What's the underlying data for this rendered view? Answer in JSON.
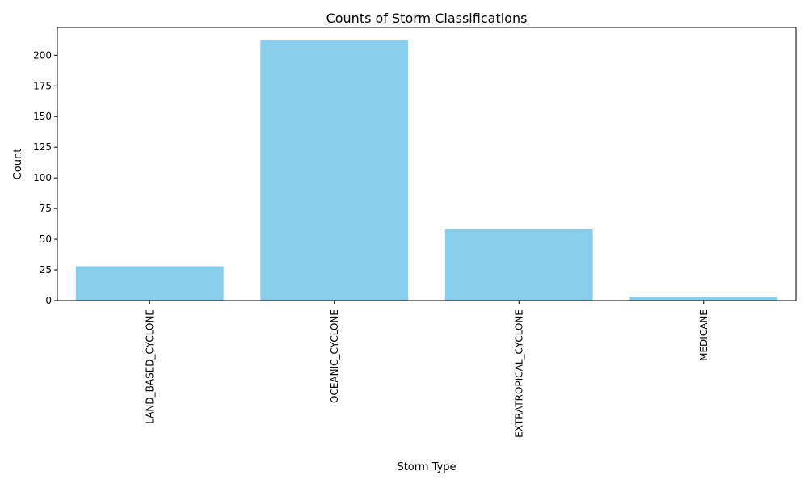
{
  "chart_data": {
    "type": "bar",
    "title": "Counts of Storm Classifications",
    "xlabel": "Storm Type",
    "ylabel": "Count",
    "categories": [
      "LAND_BASED_CYCLONE",
      "OCEANIC_CYCLONE",
      "EXTRATROPICAL_CYCLONE",
      "MEDICANE"
    ],
    "values": [
      28,
      212,
      58,
      3
    ],
    "ylim": [
      0,
      222.6
    ],
    "yticks": [
      0,
      25,
      50,
      75,
      100,
      125,
      150,
      175,
      200
    ],
    "grid": false,
    "legend": "none",
    "colors": {
      "bar": "#87ceeb",
      "axis": "#000000",
      "background": "#ffffff"
    }
  }
}
